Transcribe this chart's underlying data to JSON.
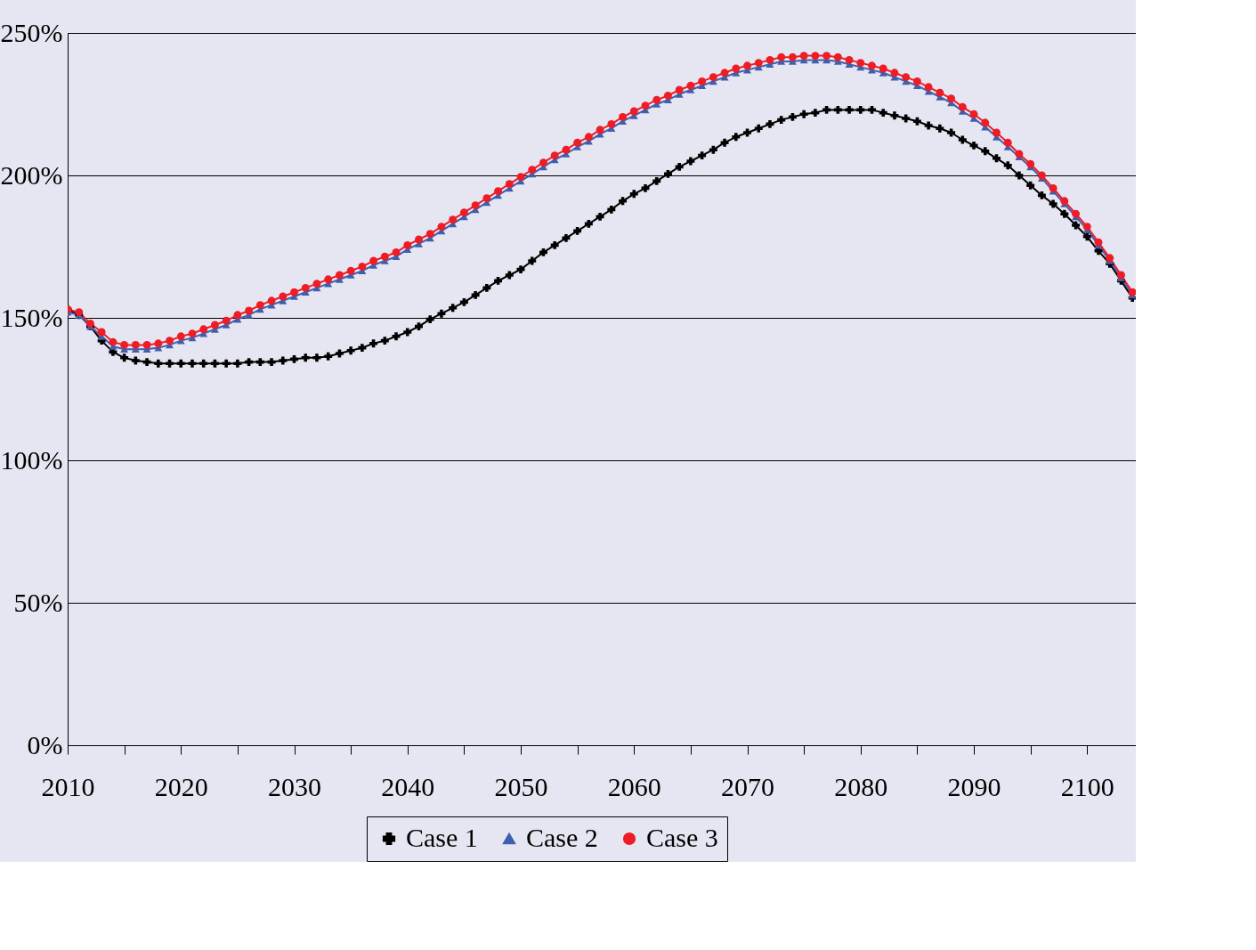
{
  "chart_data": {
    "type": "line",
    "x": [
      2010,
      2011,
      2012,
      2013,
      2014,
      2015,
      2016,
      2017,
      2018,
      2019,
      2020,
      2021,
      2022,
      2023,
      2024,
      2025,
      2026,
      2027,
      2028,
      2029,
      2030,
      2031,
      2032,
      2033,
      2034,
      2035,
      2036,
      2037,
      2038,
      2039,
      2040,
      2041,
      2042,
      2043,
      2044,
      2045,
      2046,
      2047,
      2048,
      2049,
      2050,
      2051,
      2052,
      2053,
      2054,
      2055,
      2056,
      2057,
      2058,
      2059,
      2060,
      2061,
      2062,
      2063,
      2064,
      2065,
      2066,
      2067,
      2068,
      2069,
      2070,
      2071,
      2072,
      2073,
      2074,
      2075,
      2076,
      2077,
      2078,
      2079,
      2080,
      2081,
      2082,
      2083,
      2084,
      2085,
      2086,
      2087,
      2088,
      2089,
      2090,
      2091,
      2092,
      2093,
      2094,
      2095,
      2096,
      2097,
      2098,
      2099,
      2100,
      2101,
      2102,
      2103,
      2104
    ],
    "series": [
      {
        "name": "Case 1",
        "color": "#000000",
        "marker": "cross",
        "values": [
          153,
          151,
          147,
          142,
          138,
          136,
          135,
          134.5,
          134,
          134,
          134,
          134,
          134,
          134,
          134,
          134,
          134.5,
          134.5,
          134.5,
          135,
          135.5,
          136,
          136,
          136.5,
          137.5,
          138.5,
          139.5,
          141,
          142,
          143.5,
          145,
          147,
          149.5,
          151.5,
          153.5,
          155.5,
          158,
          160.5,
          163,
          165,
          167,
          170,
          173,
          175.5,
          178,
          180.5,
          183,
          185.5,
          188,
          191,
          193.5,
          195.5,
          198,
          200.5,
          203,
          205,
          207,
          209,
          211.5,
          213.5,
          215,
          216.5,
          218,
          219.5,
          220.5,
          221.5,
          222,
          223,
          223,
          223,
          223,
          223,
          222,
          221,
          220,
          219,
          217.5,
          216.5,
          215,
          212.5,
          210.5,
          208.5,
          206,
          203.5,
          200,
          196.5,
          193,
          190,
          186.5,
          182.5,
          178.5,
          173.5,
          169,
          163,
          157
        ]
      },
      {
        "name": "Case 2",
        "color": "#3f5fad",
        "marker": "triangle",
        "values": [
          152,
          151,
          147,
          143.5,
          140,
          139,
          139,
          139,
          139.5,
          140.5,
          142,
          143,
          144.5,
          146,
          147.5,
          149.5,
          151,
          153,
          154.5,
          156,
          157.5,
          159,
          160.5,
          162,
          163.5,
          165,
          166.5,
          168.5,
          170,
          171.5,
          174,
          176,
          178,
          180.5,
          183,
          185.5,
          188,
          190.5,
          193,
          195.5,
          198,
          200.5,
          203,
          205.5,
          207.5,
          210,
          212,
          214.5,
          216.5,
          219,
          221,
          223,
          225,
          226.5,
          228.5,
          230,
          231.5,
          233,
          234.5,
          236,
          237,
          238,
          239,
          240,
          240,
          240.5,
          240.5,
          240.5,
          240,
          239,
          238,
          237,
          236,
          234.5,
          233,
          231.5,
          229.5,
          227.5,
          225.5,
          222.5,
          220,
          217,
          213.5,
          210,
          206.5,
          203,
          199,
          194.5,
          190,
          185.5,
          181,
          175.5,
          170,
          164,
          158
        ]
      },
      {
        "name": "Case 3",
        "color": "#ee1c25",
        "marker": "circle",
        "values": [
          153,
          152,
          148,
          145,
          141.5,
          140.5,
          140.5,
          140.5,
          141,
          142,
          143.5,
          144.5,
          146,
          147.5,
          149,
          151,
          152.5,
          154.5,
          156,
          157.5,
          159,
          160.5,
          162,
          163.5,
          165,
          166.5,
          168,
          170,
          171.5,
          173,
          175.5,
          177.5,
          179.5,
          182,
          184.5,
          187,
          189.5,
          192,
          194.5,
          197,
          199.5,
          202,
          204.5,
          207,
          209,
          211.5,
          213.5,
          216,
          218,
          220.5,
          222.5,
          224.5,
          226.5,
          228,
          230,
          231.5,
          233,
          234.5,
          236,
          237.5,
          238.5,
          239.5,
          240.5,
          241.5,
          241.5,
          242,
          242,
          242,
          241.5,
          240.5,
          239.5,
          238.5,
          237.5,
          236,
          234.5,
          233,
          231,
          229,
          227,
          224,
          221.5,
          218.5,
          215,
          211.5,
          207.5,
          204,
          200,
          195.5,
          191,
          186.5,
          182,
          176.5,
          171,
          165,
          159
        ]
      }
    ],
    "xlim": [
      2010,
      2104.3
    ],
    "xticks": [
      2010,
      {
        "value": 2015,
        "label": null
      },
      2020,
      {
        "value": 2025,
        "label": null
      },
      2030,
      {
        "value": 2035,
        "label": null
      },
      2040,
      {
        "value": 2045,
        "label": null
      },
      2050,
      {
        "value": 2055,
        "label": null
      },
      2060,
      {
        "value": 2065,
        "label": null
      },
      2070,
      {
        "value": 2075,
        "label": null
      },
      2080,
      {
        "value": 2085,
        "label": null
      },
      2090,
      {
        "value": 2095,
        "label": null
      },
      2100
    ],
    "ylim": [
      0,
      250
    ],
    "yticks": [
      {
        "value": 0,
        "label": "0%"
      },
      {
        "value": 50,
        "label": "50%"
      },
      {
        "value": 100,
        "label": "100%"
      },
      {
        "value": 150,
        "label": "150%"
      },
      {
        "value": 200,
        "label": "200%"
      },
      {
        "value": 250,
        "label": "250%"
      }
    ],
    "grid": "y",
    "legend": "bottom",
    "line_style": "solid"
  }
}
